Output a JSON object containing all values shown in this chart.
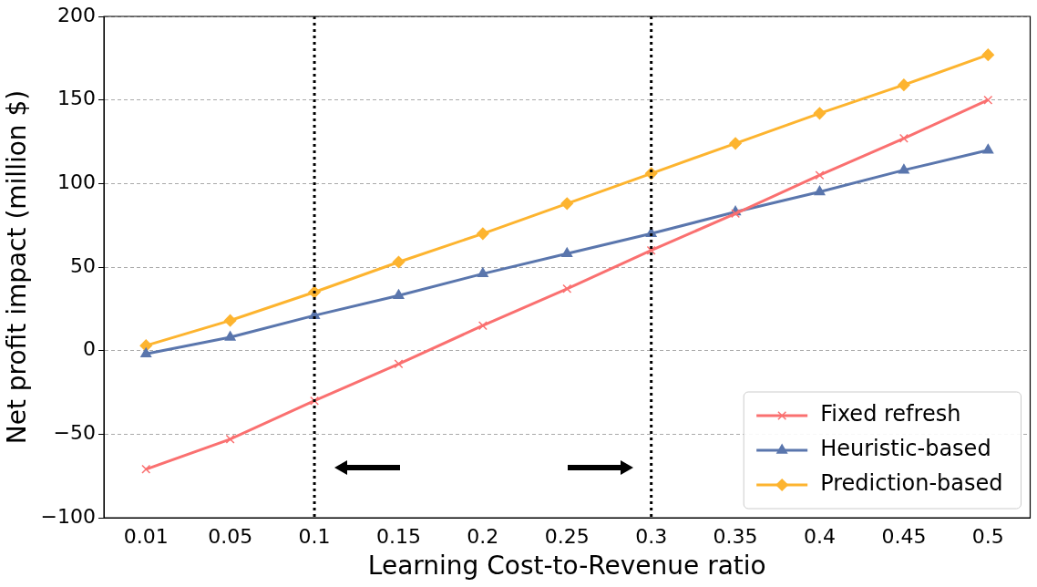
{
  "chart_data": {
    "type": "line",
    "xlabel": "Learning Cost-to-Revenue ratio",
    "ylabel": "Net profit impact (million $)",
    "categories": [
      "0.01",
      "0.05",
      "0.1",
      "0.15",
      "0.2",
      "0.25",
      "0.3",
      "0.35",
      "0.4",
      "0.45",
      "0.5"
    ],
    "series": [
      {
        "name": "Fixed refresh",
        "color": "#fa7070",
        "marker": "cross",
        "values": [
          -71,
          -53,
          -30,
          -8,
          15,
          37,
          60,
          82,
          105,
          127,
          150
        ]
      },
      {
        "name": "Heuristic-based",
        "color": "#5a76ad",
        "marker": "triangle",
        "values": [
          -2,
          8,
          21,
          33,
          46,
          58,
          70,
          83,
          95,
          108,
          120
        ]
      },
      {
        "name": "Prediction-based",
        "color": "#fdb42f",
        "marker": "diamond",
        "values": [
          3,
          18,
          35,
          53,
          70,
          88,
          106,
          124,
          142,
          159,
          177
        ]
      }
    ],
    "ylim": [
      -100,
      200
    ],
    "yticks": [
      {
        "value": -100,
        "label": "−100"
      },
      {
        "value": -50,
        "label": "−50"
      },
      0,
      50,
      100,
      150,
      200
    ],
    "grid": "y",
    "legend": "bottom right",
    "line_style": "solid",
    "ref_lines": [
      {
        "axis": "x",
        "value": "0.1",
        "line_style": "dotted",
        "color": "#000000"
      },
      {
        "axis": "x",
        "value": "0.3",
        "line_style": "dotted",
        "color": "#000000"
      }
    ]
  }
}
